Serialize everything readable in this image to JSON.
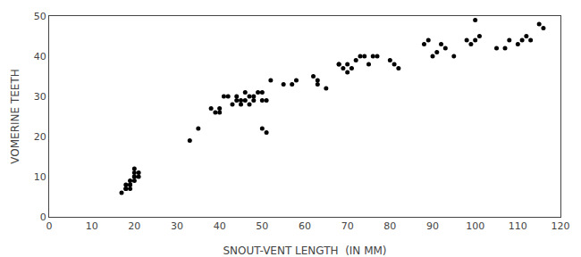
{
  "chart_data": {
    "type": "scatter",
    "x": [
      17,
      18,
      18,
      18,
      19,
      19,
      19,
      19,
      20,
      20,
      20,
      20,
      20,
      21,
      21,
      33,
      35,
      38,
      39,
      40,
      40,
      41,
      42,
      43,
      44,
      44,
      45,
      45,
      46,
      46,
      47,
      47,
      48,
      48,
      49,
      50,
      50,
      50,
      51,
      51,
      52,
      55,
      57,
      58,
      62,
      63,
      63,
      65,
      68,
      68,
      69,
      70,
      70,
      71,
      72,
      73,
      74,
      75,
      76,
      77,
      80,
      81,
      82,
      88,
      89,
      90,
      91,
      92,
      93,
      95,
      98,
      99,
      100,
      100,
      101,
      105,
      107,
      108,
      110,
      111,
      112,
      113,
      115,
      116
    ],
    "y": [
      6,
      7,
      7,
      8,
      7,
      8,
      8,
      9,
      9,
      10,
      10,
      11,
      12,
      10,
      11,
      19,
      22,
      27,
      26,
      26,
      27,
      30,
      30,
      28,
      29,
      30,
      28,
      29,
      29,
      31,
      28,
      30,
      29,
      30,
      31,
      22,
      29,
      31,
      29,
      21,
      34,
      33,
      33,
      34,
      35,
      33,
      34,
      32,
      38,
      38,
      37,
      36,
      38,
      37,
      39,
      40,
      40,
      38,
      40,
      40,
      39,
      38,
      37,
      43,
      44,
      40,
      41,
      43,
      42,
      40,
      44,
      43,
      44,
      49,
      45,
      42,
      42,
      44,
      43,
      44,
      45,
      44,
      48,
      47
    ],
    "color": "black",
    "xlabel": "SNOUT-VENT LENGTH  (IN MM)",
    "ylabel": "VOMERINE TEETH",
    "xlim": [
      0,
      120
    ],
    "ylim": [
      0,
      50
    ],
    "xticks": [
      0,
      10,
      20,
      30,
      40,
      50,
      60,
      70,
      80,
      90,
      100,
      110,
      120
    ],
    "yticks": [
      0,
      10,
      20,
      30,
      40,
      50
    ],
    "grid": false
  }
}
